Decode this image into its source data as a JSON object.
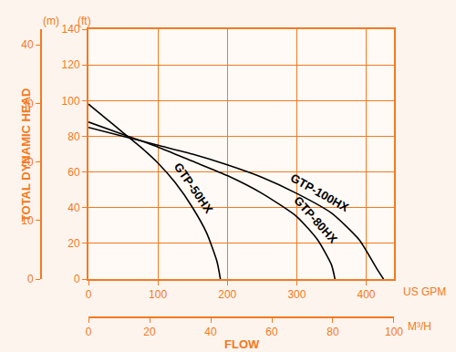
{
  "chart_data": {
    "type": "line",
    "ylabel": "TOTAL DYNAMIC HEAD",
    "y_unit": "(ft)",
    "y2_unit": "(m)",
    "xlabel": "FLOW",
    "x_unit": "US GPM",
    "x2_unit": "M³/H",
    "xlim": [
      0,
      440
    ],
    "xticks": [
      0,
      100,
      200,
      300,
      400
    ],
    "x2lim": [
      0,
      100
    ],
    "x2ticks": [
      0,
      20,
      40,
      60,
      80,
      100
    ],
    "ylim": [
      0,
      140
    ],
    "yticks": [
      0,
      20,
      40,
      60,
      80,
      100,
      120,
      140
    ],
    "y2lim": [
      0,
      42.67
    ],
    "y2ticks": [
      0,
      10,
      20,
      30,
      40
    ],
    "grid": true,
    "series": [
      {
        "name": "GTP-50HX",
        "color": "#000000",
        "x": [
          0,
          25,
          50,
          75,
          100,
          125,
          150,
          170,
          185,
          190
        ],
        "values": [
          98,
          90,
          82,
          74,
          65,
          54,
          40,
          26,
          10,
          0
        ]
      },
      {
        "name": "GTP-80HX",
        "color": "#000000",
        "x": [
          0,
          50,
          100,
          150,
          200,
          250,
          300,
          330,
          350,
          355
        ],
        "values": [
          88,
          81,
          74,
          66,
          58,
          48,
          35,
          22,
          8,
          0
        ]
      },
      {
        "name": "GTP-100HX",
        "color": "#000000",
        "x": [
          0,
          50,
          100,
          150,
          200,
          250,
          300,
          350,
          390,
          415,
          425
        ],
        "values": [
          85,
          80,
          75,
          70,
          64,
          57,
          48,
          37,
          22,
          6,
          0
        ]
      }
    ]
  }
}
